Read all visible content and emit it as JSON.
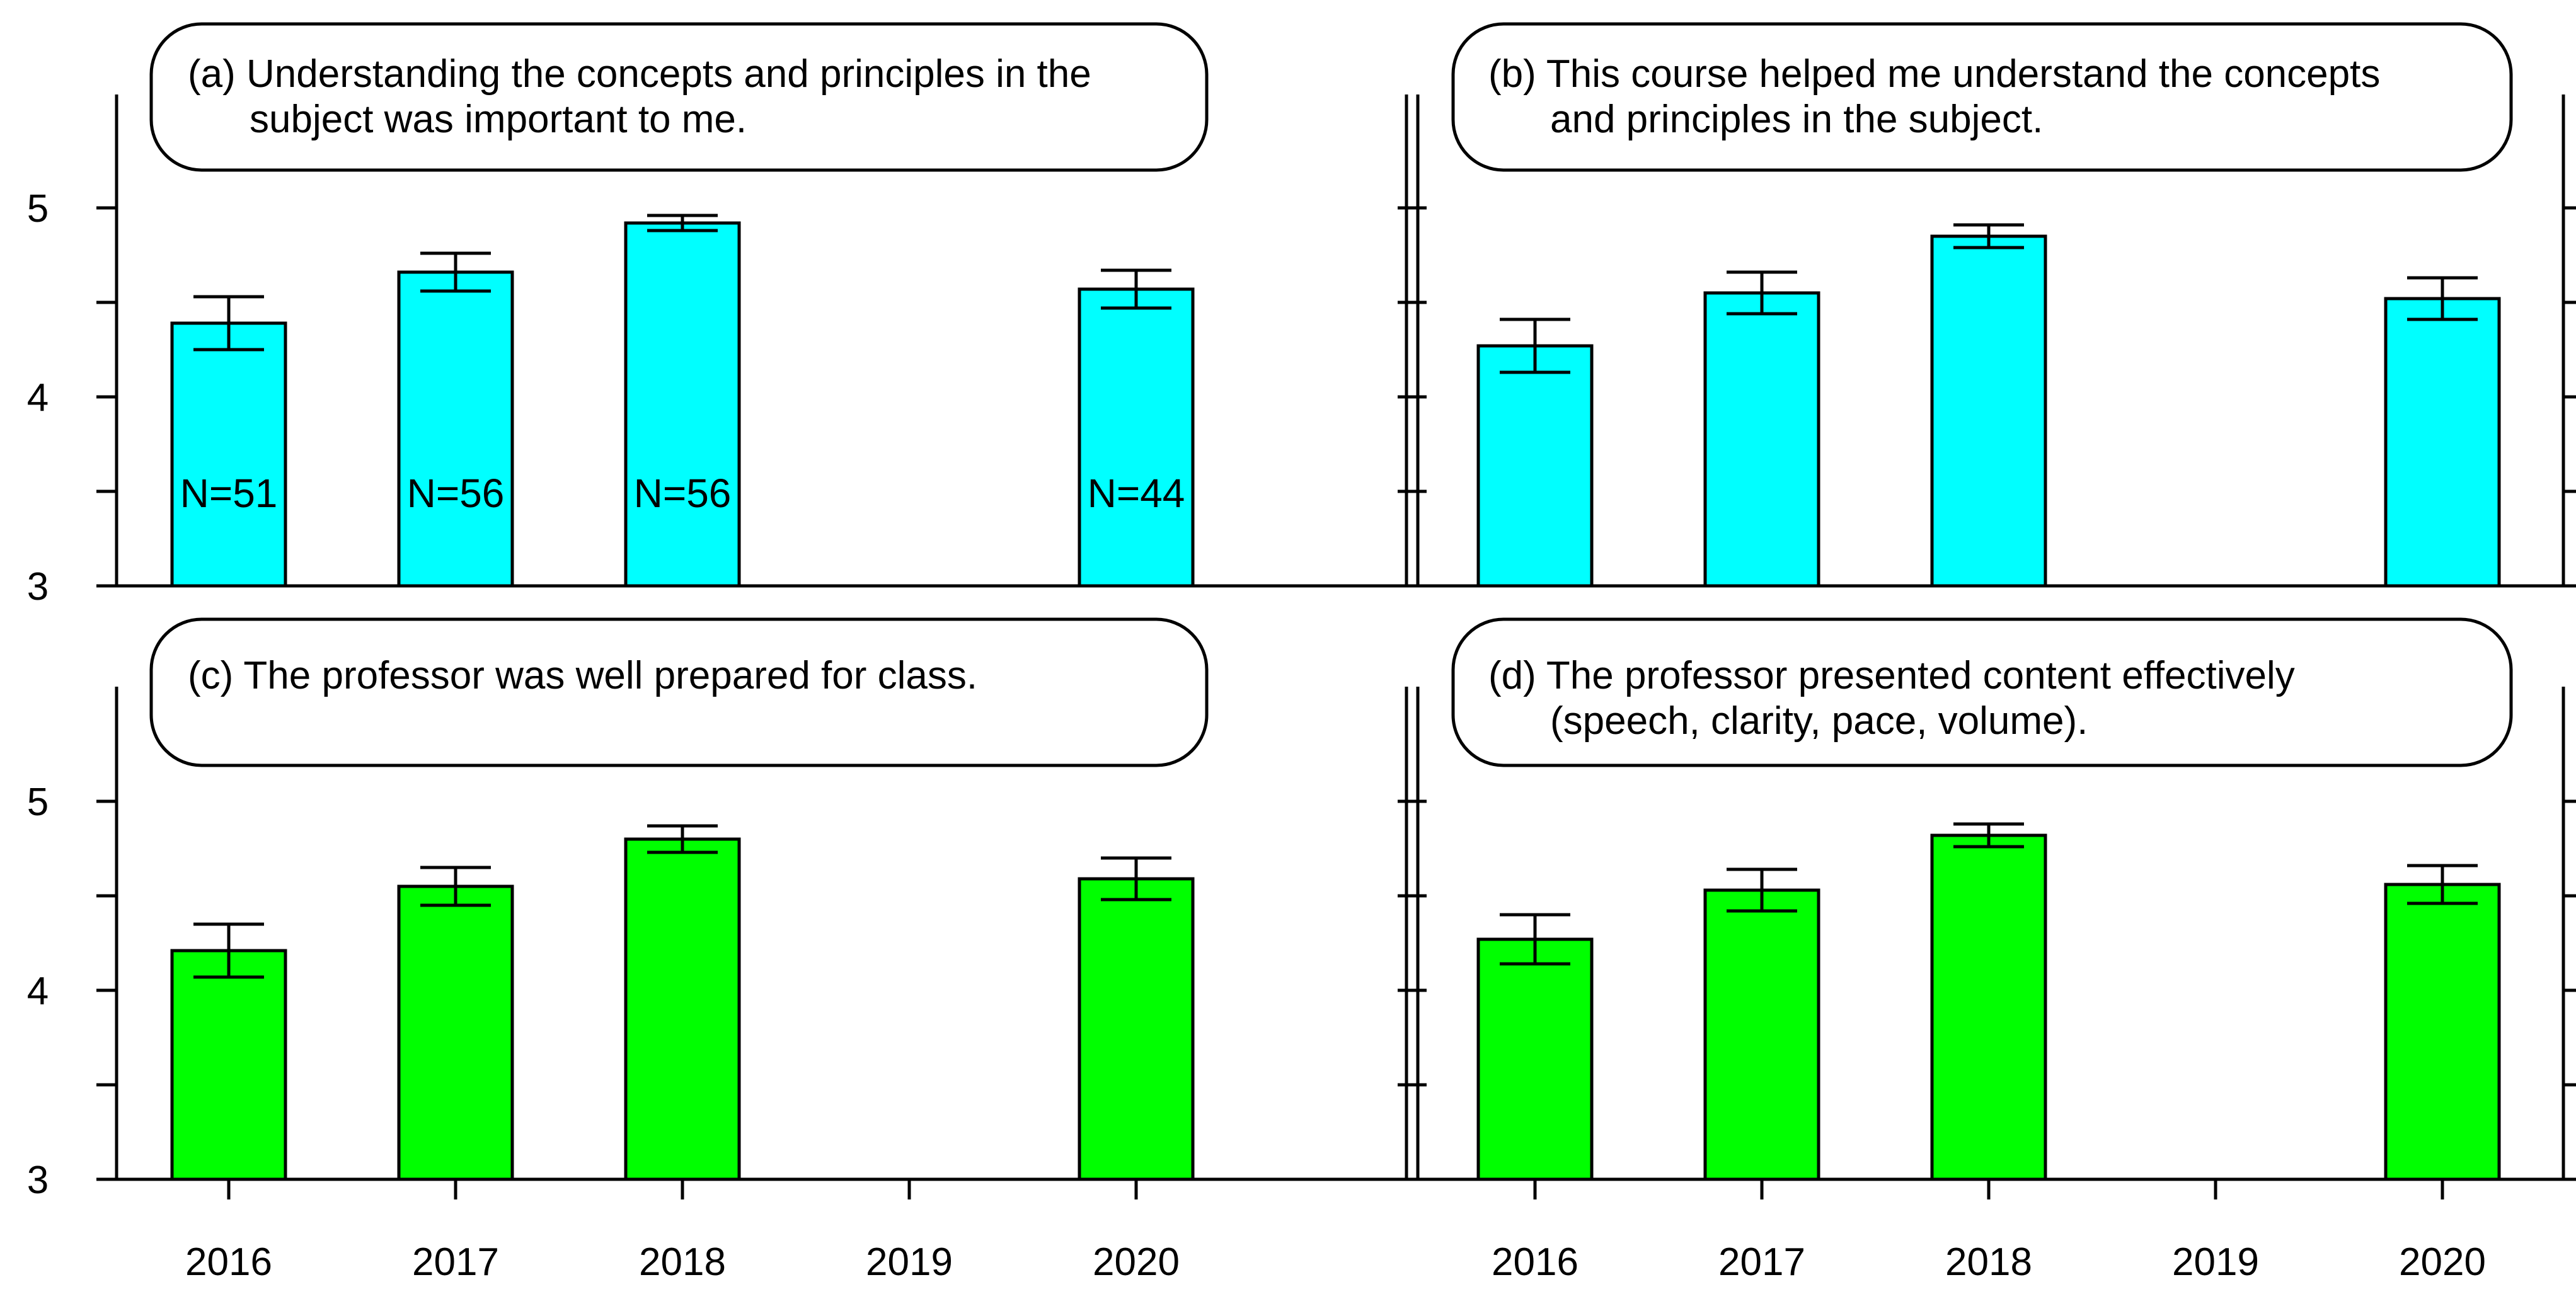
{
  "figure": {
    "x_ticks": [
      "2016",
      "2017",
      "2018",
      "2019",
      "2020"
    ],
    "y_ticks": [
      "3",
      "4",
      "5"
    ]
  },
  "chart_data": [
    {
      "type": "bar",
      "panel": "a",
      "title_lines": [
        "(a) Understanding the concepts and principles in the",
        "subject was important to me."
      ],
      "categories": [
        "2016",
        "2017",
        "2018",
        "2019",
        "2020"
      ],
      "values": [
        4.39,
        4.66,
        4.92,
        null,
        4.57
      ],
      "errors": [
        0.14,
        0.1,
        0.04,
        null,
        0.1
      ],
      "n_labels": [
        "N=51",
        "N=56",
        "N=56",
        "",
        "N=44"
      ],
      "ylim": [
        3,
        5.6
      ],
      "y_ticks": [
        3,
        3.5,
        4,
        4.5,
        5
      ],
      "bar_color": "#00ffff"
    },
    {
      "type": "bar",
      "panel": "b",
      "title_lines": [
        "(b) This course helped me understand the concepts",
        "and principles in the subject."
      ],
      "categories": [
        "2016",
        "2017",
        "2018",
        "2019",
        "2020"
      ],
      "values": [
        4.27,
        4.55,
        4.85,
        null,
        4.52
      ],
      "errors": [
        0.14,
        0.11,
        0.06,
        null,
        0.11
      ],
      "n_labels": [],
      "ylim": [
        3,
        5.6
      ],
      "y_ticks": [
        3,
        3.5,
        4,
        4.5,
        5
      ],
      "bar_color": "#00ffff"
    },
    {
      "type": "bar",
      "panel": "c",
      "title_lines": [
        "(c) The professor was well prepared for class."
      ],
      "categories": [
        "2016",
        "2017",
        "2018",
        "2019",
        "2020"
      ],
      "values": [
        4.21,
        4.55,
        4.8,
        null,
        4.59
      ],
      "errors": [
        0.14,
        0.1,
        0.07,
        null,
        0.11
      ],
      "n_labels": [],
      "ylim": [
        3,
        5.6
      ],
      "y_ticks": [
        3,
        3.5,
        4,
        4.5,
        5
      ],
      "bar_color": "#00ff00"
    },
    {
      "type": "bar",
      "panel": "d",
      "title_lines": [
        "(d) The professor presented content effectively",
        "(speech, clarity, pace, volume)."
      ],
      "categories": [
        "2016",
        "2017",
        "2018",
        "2019",
        "2020"
      ],
      "values": [
        4.27,
        4.53,
        4.82,
        null,
        4.56
      ],
      "errors": [
        0.13,
        0.11,
        0.06,
        null,
        0.1
      ],
      "n_labels": [],
      "ylim": [
        3,
        5.6
      ],
      "y_ticks": [
        3,
        3.5,
        4,
        4.5,
        5
      ],
      "bar_color": "#00ff00"
    }
  ]
}
